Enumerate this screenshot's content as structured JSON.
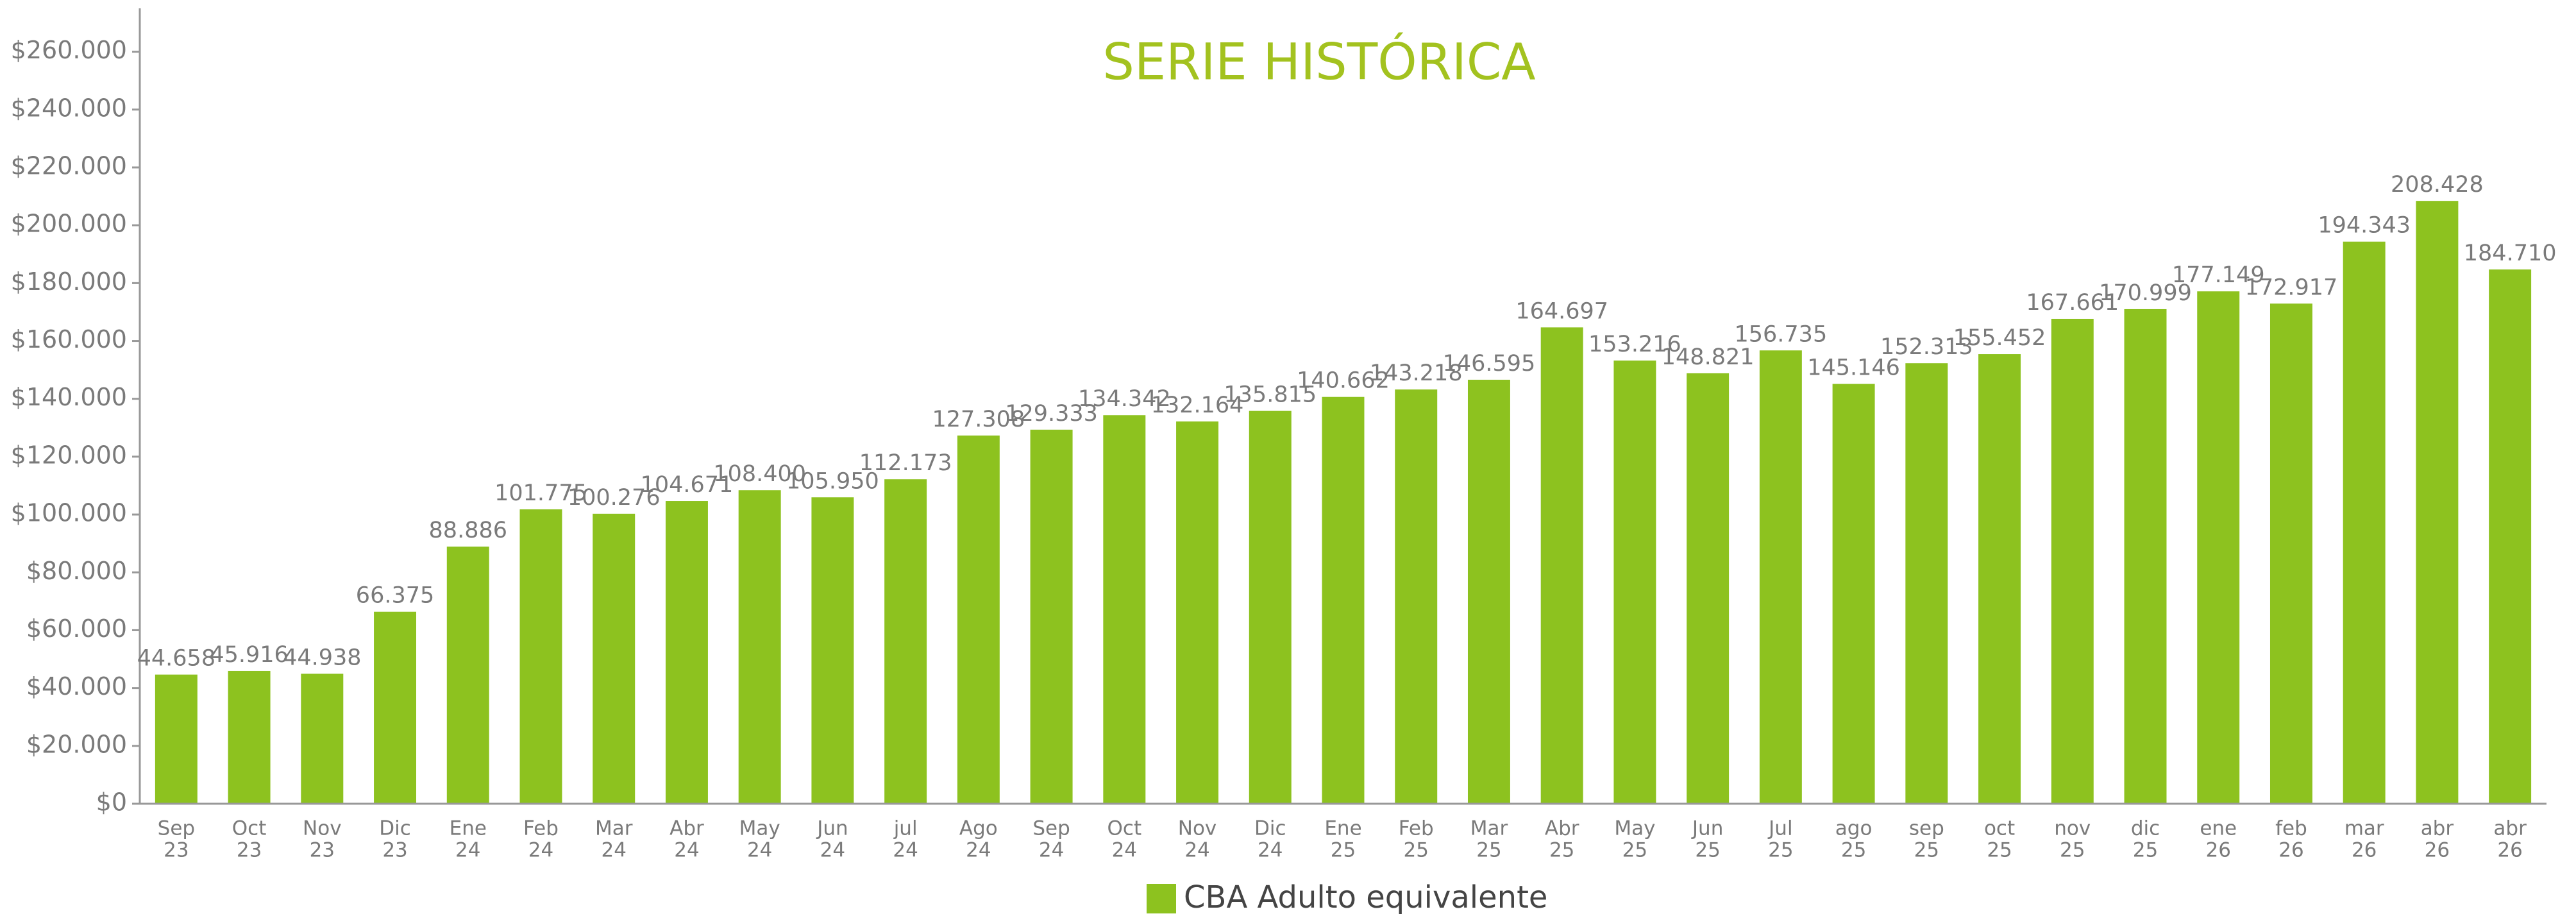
{
  "chart_data": {
    "type": "bar",
    "title": "SERIE HISTÓRICA",
    "categories": [
      [
        "Sep",
        "23"
      ],
      [
        "Oct",
        "23"
      ],
      [
        "Nov",
        "23"
      ],
      [
        "Dic",
        "23"
      ],
      [
        "Ene",
        "24"
      ],
      [
        "Feb",
        "24"
      ],
      [
        "Mar",
        "24"
      ],
      [
        "Abr",
        "24"
      ],
      [
        "May",
        "24"
      ],
      [
        "Jun",
        "24"
      ],
      [
        "jul",
        "24"
      ],
      [
        "Ago",
        "24"
      ],
      [
        "Sep",
        "24"
      ],
      [
        "Oct",
        "24"
      ],
      [
        "Nov",
        "24"
      ],
      [
        "Dic",
        "24"
      ],
      [
        "Ene",
        "25"
      ],
      [
        "Feb",
        "25"
      ],
      [
        "Mar",
        "25"
      ],
      [
        "Abr",
        "25"
      ],
      [
        "May",
        "25"
      ],
      [
        "Jun",
        "25"
      ],
      [
        "Jul",
        "25"
      ],
      [
        "ago",
        "25"
      ],
      [
        "sep",
        "25"
      ],
      [
        "oct",
        "25"
      ],
      [
        "nov",
        "25"
      ],
      [
        "dic",
        "25"
      ],
      [
        "ene",
        "26"
      ],
      [
        "feb",
        "26"
      ],
      [
        "mar",
        "26"
      ],
      [
        "abr",
        "26"
      ],
      [
        "abr",
        "26"
      ]
    ],
    "series": [
      {
        "name": "CBA Adulto equivalente",
        "color": "#8dc21f",
        "values": [
          44658,
          45916,
          44938,
          66375,
          88886,
          101775,
          100276,
          104671,
          108400,
          105950,
          112173,
          127308,
          129333,
          134342,
          132164,
          135815,
          140662,
          143218,
          146595,
          164697,
          153216,
          148821,
          156735,
          145146,
          152313,
          155452,
          167661,
          170999,
          177149,
          172917,
          194343,
          208428,
          184710
        ],
        "value_labels": [
          "44.658",
          "45.916",
          "44.938",
          "66.375",
          "88.886",
          "101.775",
          "100.276",
          "104.671",
          "108.400",
          "105.950",
          "112.173",
          "127.308",
          "129.333",
          "134.342",
          "132.164",
          "135.815",
          "140.662",
          "143.218",
          "146.595",
          "164.697",
          "153.216",
          "148.821",
          "156.735",
          "145.146",
          "152.313",
          "155.452",
          "167.661",
          "170.999",
          "177.149",
          "172.917",
          "194.343",
          "208.428",
          "184.710"
        ]
      }
    ],
    "ylim": [
      0,
      275000
    ],
    "yticks": [
      {
        "value": 0,
        "label": "$0"
      },
      {
        "value": 20000,
        "label": "$20.000"
      },
      {
        "value": 40000,
        "label": "$40.000"
      },
      {
        "value": 60000,
        "label": "$60.000"
      },
      {
        "value": 80000,
        "label": "$80.000"
      },
      {
        "value": 100000,
        "label": "$100.000"
      },
      {
        "value": 120000,
        "label": "$120.000"
      },
      {
        "value": 140000,
        "label": "$140.000"
      },
      {
        "value": 160000,
        "label": "$160.000"
      },
      {
        "value": 180000,
        "label": "$180.000"
      },
      {
        "value": 200000,
        "label": "$200.000"
      },
      {
        "value": 220000,
        "label": "$220.000"
      },
      {
        "value": 240000,
        "label": "$240.000"
      },
      {
        "value": 260000,
        "label": "$260.000"
      }
    ],
    "legend": "bottom"
  }
}
